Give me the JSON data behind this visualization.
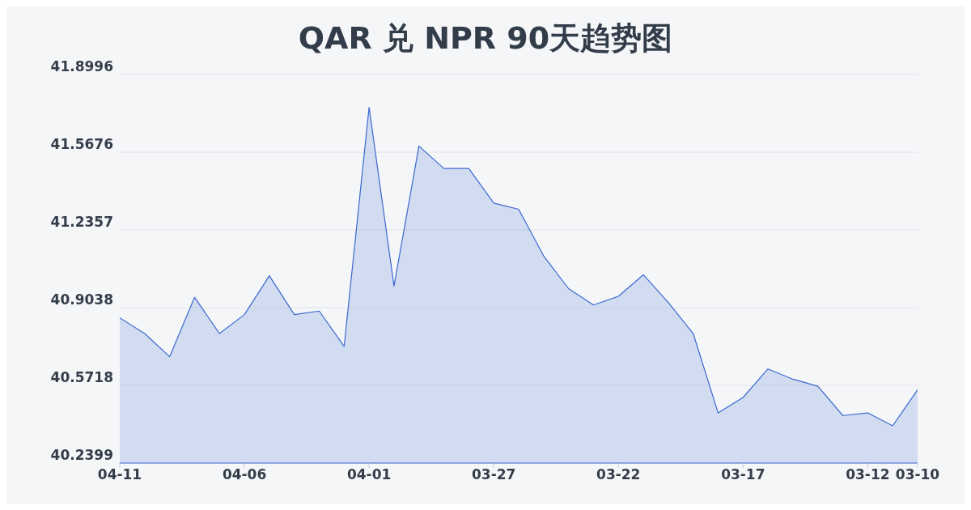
{
  "chart_data": {
    "type": "area",
    "title": "QAR 兑 NPR 90天趋势图",
    "categories": [
      "04-11",
      null,
      null,
      null,
      null,
      "04-06",
      null,
      null,
      null,
      null,
      "04-01",
      null,
      null,
      null,
      null,
      "03-27",
      null,
      null,
      null,
      null,
      "03-22",
      null,
      null,
      null,
      null,
      "03-17",
      null,
      null,
      null,
      null,
      "03-12",
      null,
      "03-10"
    ],
    "series": [
      {
        "color": "#3a68d0",
        "values": [
          40.86,
          40.793,
          40.694,
          40.948,
          40.793,
          40.874,
          41.04,
          40.874,
          40.889,
          40.738,
          41.759,
          40.996,
          41.594,
          41.498,
          41.498,
          41.35,
          41.324,
          41.125,
          40.985,
          40.915,
          40.952,
          41.044,
          40.926,
          40.793,
          40.454,
          40.52,
          40.642,
          40.598,
          40.568,
          40.443,
          40.454,
          40.399,
          40.553
        ]
      }
    ],
    "ylim": [
      40.2399,
      41.8996
    ],
    "yticks": [
      40.2399,
      40.5718,
      40.9038,
      41.2357,
      41.5676,
      41.8996
    ],
    "grid": "y",
    "legend": false,
    "marker": "none",
    "line_style": "solid"
  }
}
